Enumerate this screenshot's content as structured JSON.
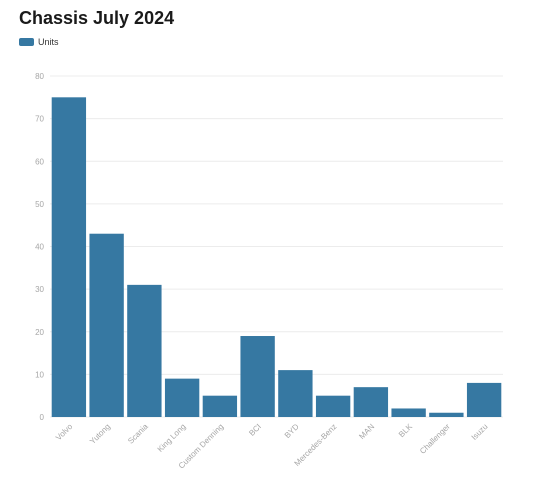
{
  "colors": {
    "bar": "#3678a2",
    "grid": "#ececec",
    "axis_text": "#a6a6a6"
  },
  "chart_data": {
    "type": "bar",
    "title": "Chassis July 2024",
    "xlabel": "",
    "ylabel": "",
    "ylim": [
      0,
      80
    ],
    "yticks": [
      0,
      10,
      20,
      30,
      40,
      50,
      60,
      70,
      80
    ],
    "grid": true,
    "legend_position": "top-left",
    "categories": [
      "Volvo",
      "Yutong",
      "Scania",
      "King Long",
      "Custom Denning",
      "BCI",
      "BYD",
      "Mercedes-Benz",
      "MAN",
      "BLK",
      "Challenger",
      "Isuzu"
    ],
    "series": [
      {
        "name": "Units",
        "values": [
          75,
          43,
          31,
          9,
          5,
          19,
          11,
          5,
          7,
          2,
          1,
          8
        ]
      }
    ]
  }
}
